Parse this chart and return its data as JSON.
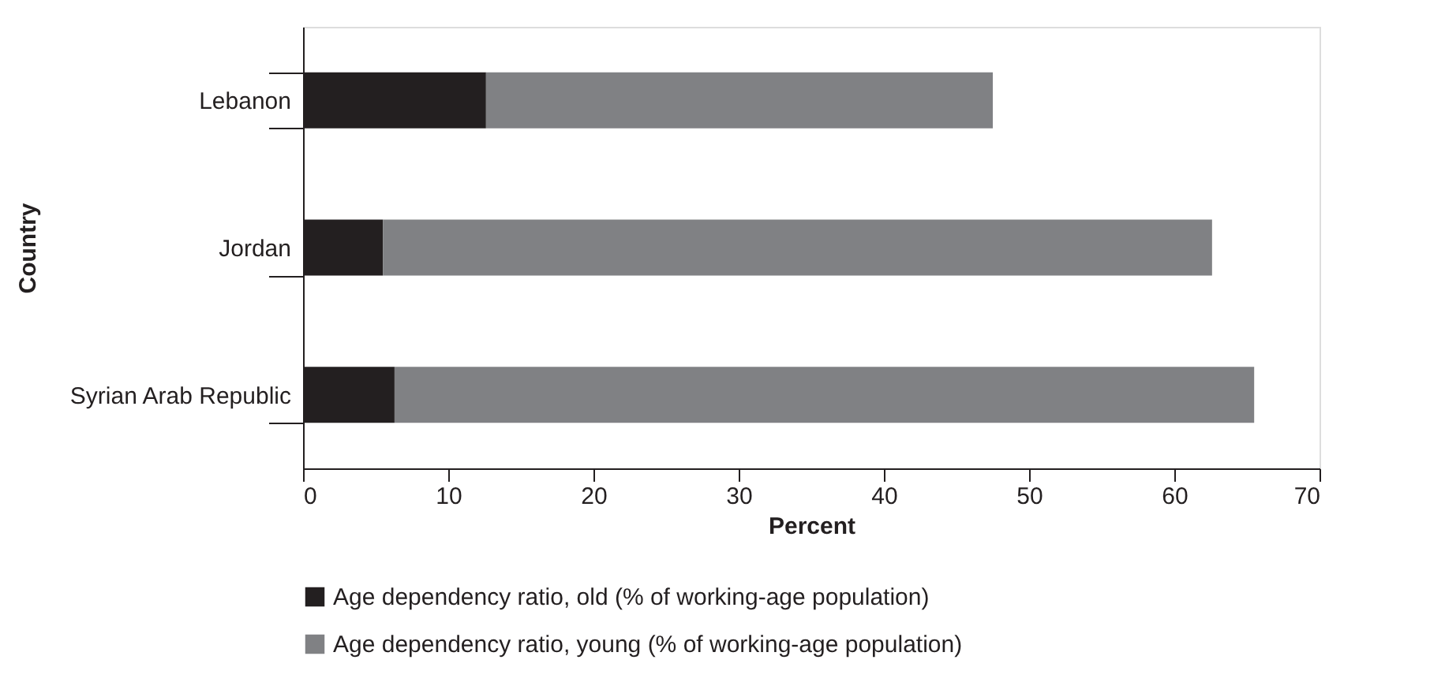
{
  "chart_data": {
    "type": "bar",
    "orientation": "horizontal",
    "stacked": true,
    "categories": [
      "Lebanon",
      "Jordan",
      "Syrian Arab Republic"
    ],
    "series": [
      {
        "name": "Age dependency ratio, old (% of working-age population)",
        "color": "#231f20",
        "values": [
          12.6,
          5.5,
          6.3
        ]
      },
      {
        "name": "Age dependency ratio, young (% of working-age population)",
        "color": "#808184",
        "values": [
          34.9,
          57.1,
          59.2
        ]
      }
    ],
    "xlabel": "Percent",
    "ylabel": "Country",
    "xlim": [
      0,
      70
    ],
    "xticks": [
      0,
      10,
      20,
      30,
      40,
      50,
      60,
      70
    ],
    "grid": false,
    "legend": "bottom"
  }
}
